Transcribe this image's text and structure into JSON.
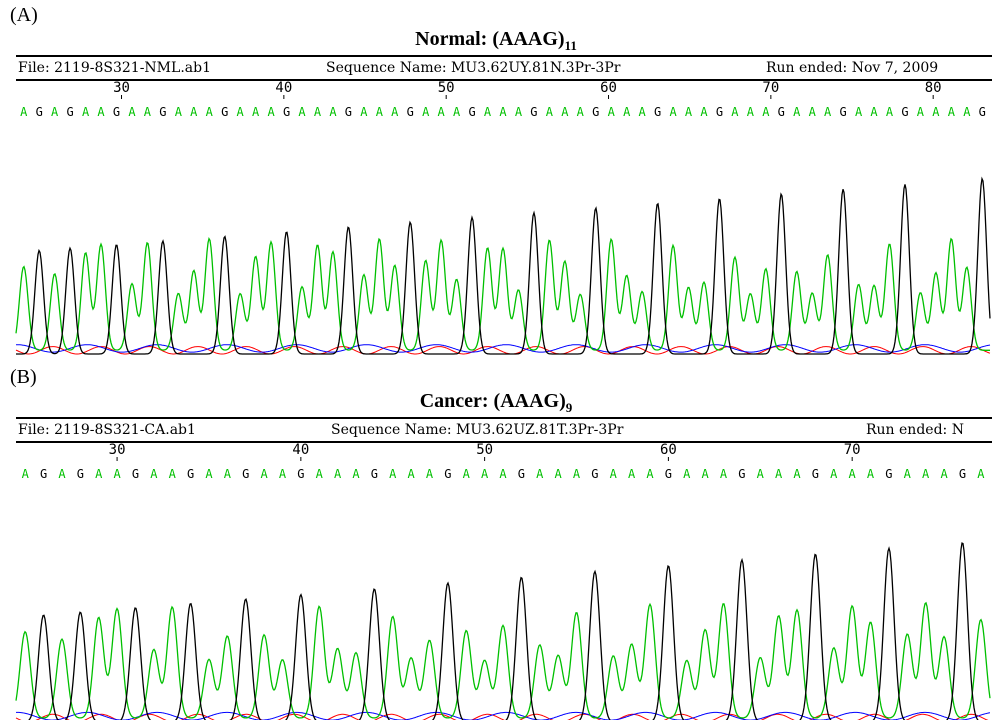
{
  "chart_data": [
    {
      "type": "line",
      "panel_label": "(A)",
      "title": "Normal: (AAAG)",
      "title_sub": "11",
      "file": "File: 2119-8S321-NML.ab1",
      "sequence_name": "Sequence Name: MU3.62UY.81N.3Pr-3Pr",
      "run_ended": "Run ended: Nov 7, 2009",
      "x_range": [
        23.5,
        83.5
      ],
      "ticks": [
        "30",
        "40",
        "50",
        "60",
        "70",
        "80"
      ],
      "bases": "AGAGAAGAAGAAAGAAAGAAAGAAAGAAAGAAAGAAAGAAAGAAAGAAAGAAAGAAAGAAAAG",
      "colors": {
        "A": "#00c000",
        "G": "#000000",
        "C": "#0000ff",
        "T": "#ff0000"
      },
      "legend": "none",
      "grid": false
    },
    {
      "type": "line",
      "panel_label": "(B)",
      "title": "Cancer: (AAAG)",
      "title_sub": "9",
      "file": "File: 2119-8S321-CA.ab1",
      "sequence_name": "Sequence Name: MU3.62UZ.81T.3Pr-3Pr",
      "run_ended": "Run ended: N",
      "x_range": [
        24.5,
        77.5
      ],
      "ticks": [
        "30",
        "40",
        "50",
        "60",
        "70"
      ],
      "bases": "AGAGAAGAAGAAGAAGAAAGAAAGAAAGAAAGAAAGAAAGAAAGAAAGAAAGA",
      "colors": {
        "A": "#00c000",
        "G": "#000000",
        "C": "#0000ff",
        "T": "#ff0000"
      },
      "legend": "none",
      "grid": false
    }
  ]
}
